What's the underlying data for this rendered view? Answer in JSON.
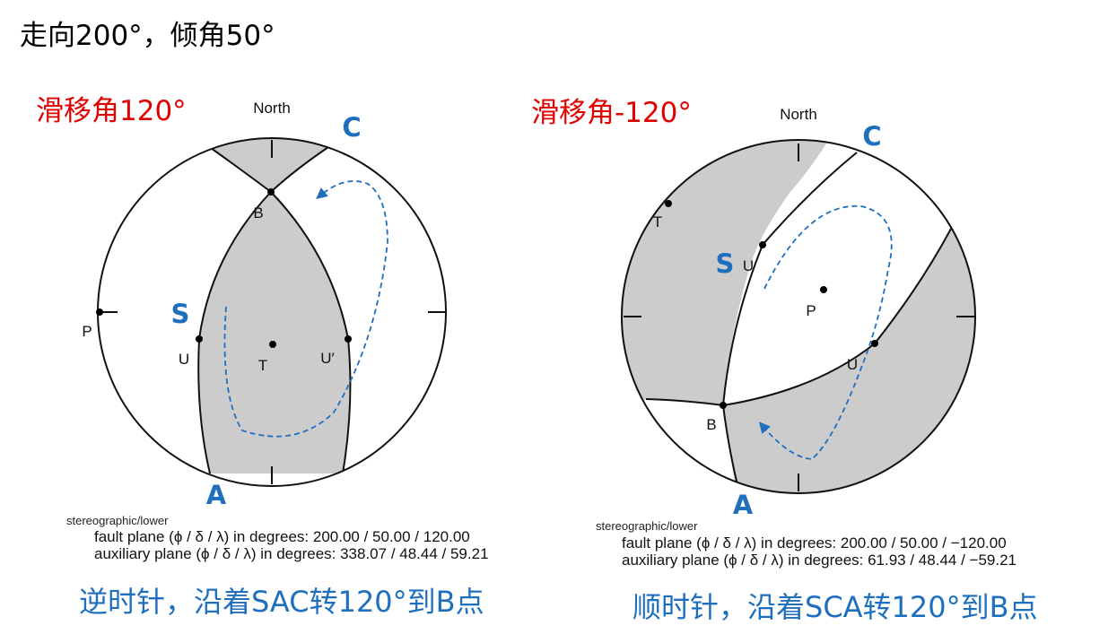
{
  "heading": "走向200°，倾角50°",
  "left": {
    "rake_label": "滑移角120°",
    "north": "North",
    "point_labels": {
      "B": "B",
      "P": "P",
      "U": "U",
      "T": "T",
      "U2": "U′"
    },
    "caps": {
      "C": "C",
      "S": "S",
      "A": "A"
    },
    "projection": "stereographic/lower",
    "fault_plane": "fault plane (ϕ / δ / λ) in degrees: 200.00 / 50.00 / 120.00",
    "auxiliary_plane": "auxiliary plane (ϕ / δ / λ) in degrees: 338.07 / 48.44 / 59.21",
    "caption": "逆时针，沿着SAC转120°到B点"
  },
  "right": {
    "rake_label": "滑移角-120°",
    "north": "North",
    "point_labels": {
      "T": "T",
      "U": "U",
      "P": "P",
      "U2": "U",
      "B": "B"
    },
    "caps": {
      "C": "C",
      "S": "S",
      "A": "A"
    },
    "projection": "stereographic/lower",
    "fault_plane": "fault plane (ϕ / δ / λ) in degrees: 200.00 / 50.00 / −120.00",
    "auxiliary_plane": "auxiliary plane (ϕ / δ / λ) in degrees: 61.93 / 48.44 / −59.21",
    "caption": "顺时针，沿着SCA转120°到B点"
  },
  "colors": {
    "shade": "#cccccc",
    "accent": "#1f6fbf",
    "red": "#e00000"
  }
}
